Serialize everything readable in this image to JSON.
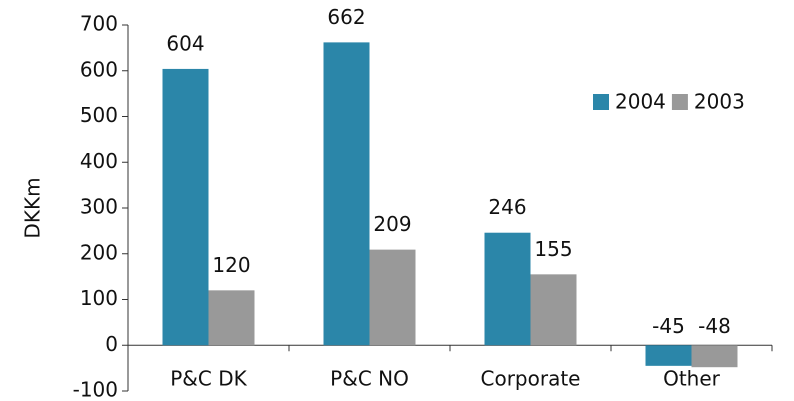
{
  "chart_data": {
    "type": "bar",
    "y_label": "DKKm",
    "categories": [
      "P&C DK",
      "P&C NO",
      "Corporate",
      "Other"
    ],
    "series": [
      {
        "name": "2004",
        "color": "#2b86a9",
        "values": [
          604,
          662,
          246,
          -45
        ]
      },
      {
        "name": "2003",
        "color": "#999999",
        "values": [
          120,
          209,
          155,
          -48
        ]
      }
    ],
    "ylim": [
      -100,
      700
    ],
    "yticks": [
      -100,
      0,
      100,
      200,
      300,
      400,
      500,
      600,
      700
    ],
    "legend": "upper-right",
    "grid": false
  }
}
